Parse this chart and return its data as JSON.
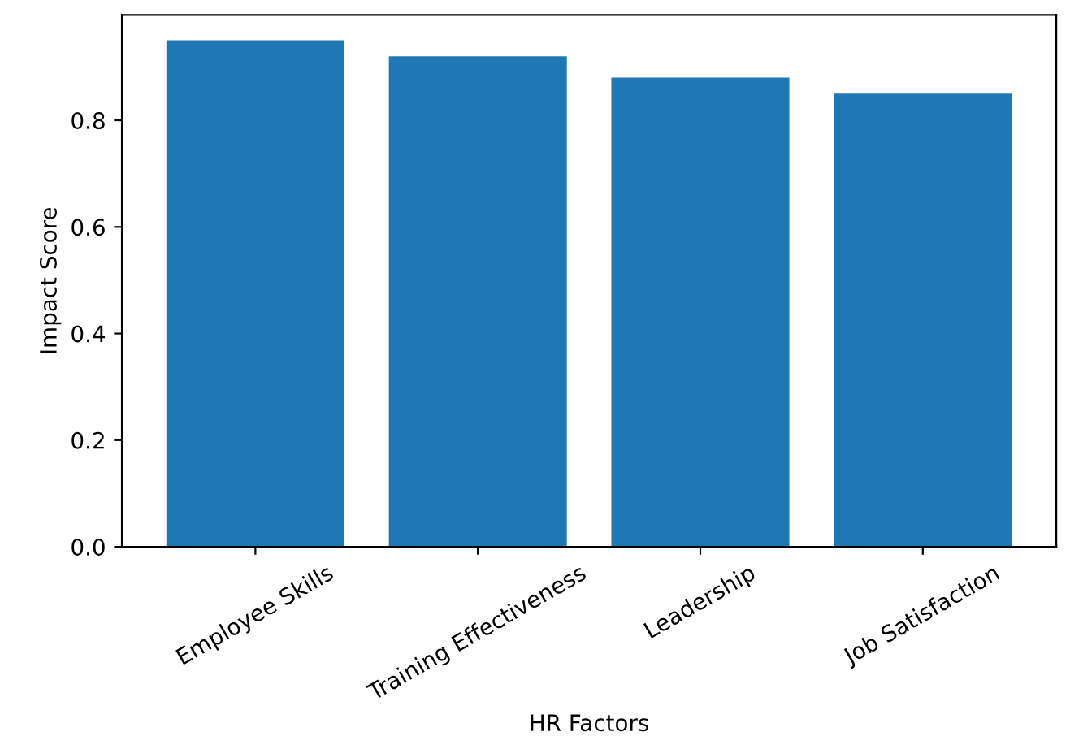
{
  "chart_data": {
    "type": "bar",
    "xlabel": "HR Factors",
    "ylabel": "Impact Score",
    "categories": [
      "Employee Skills",
      "Training Effectiveness",
      "Leadership",
      "Job Satisfaction"
    ],
    "values": [
      0.95,
      0.92,
      0.88,
      0.85
    ],
    "color": "#1f77b4",
    "ylim": [
      0,
      0.9975
    ],
    "yticks": [
      {
        "value": 0,
        "label": "0.0"
      },
      {
        "value": 0.2,
        "label": "0.2"
      },
      {
        "value": 0.4,
        "label": "0.4"
      },
      {
        "value": 0.6,
        "label": "0.6"
      },
      {
        "value": 0.8,
        "label": "0.8"
      }
    ],
    "grid": false
  }
}
